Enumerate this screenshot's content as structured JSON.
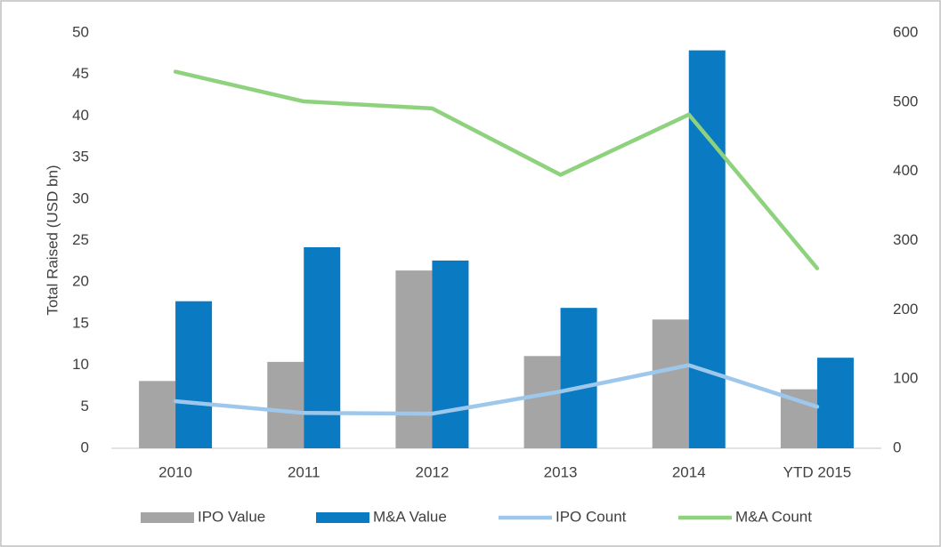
{
  "chart_data": {
    "type": "bar_line",
    "y_label": "Total Raised (USD bn)",
    "categories": [
      "2010",
      "2011",
      "2012",
      "2013",
      "2014",
      "YTD 2015"
    ],
    "series": [
      {
        "name": "IPO Value",
        "kind": "bar",
        "color": "#a5a5a5",
        "values": [
          8.1,
          10.4,
          21.4,
          11.1,
          15.5,
          7.1
        ]
      },
      {
        "name": "M&A Value",
        "kind": "bar",
        "color": "#0a7ac2",
        "values": [
          17.7,
          24.2,
          22.6,
          16.9,
          47.9,
          10.9
        ]
      },
      {
        "name": "IPO Count",
        "kind": "line",
        "axis": "y2",
        "color": "#9dc8ec",
        "values": [
          68,
          51,
          50,
          82,
          120,
          60
        ]
      },
      {
        "name": "M&A Count",
        "kind": "line",
        "axis": "y2",
        "color": "#8fd27e",
        "values": [
          544,
          501,
          491,
          395,
          482,
          260
        ]
      }
    ],
    "ylim": [
      0,
      50
    ],
    "yticks": [
      0,
      5,
      10,
      15,
      20,
      25,
      30,
      35,
      40,
      45,
      50
    ],
    "y2lim": [
      0,
      600
    ],
    "y2ticks": [
      0,
      100,
      200,
      300,
      400,
      500,
      600
    ],
    "legend": "bottom"
  }
}
